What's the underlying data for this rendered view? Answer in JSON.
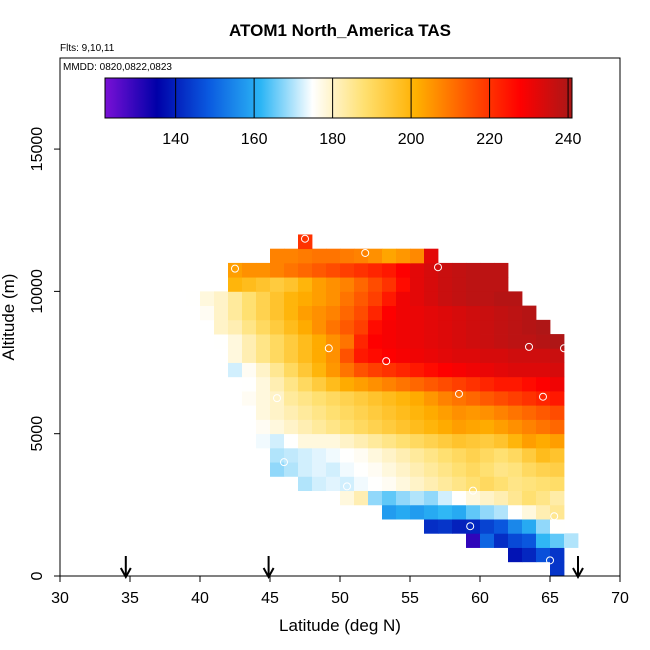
{
  "chart_data": {
    "type": "heatmap",
    "title": "ATOM1 North_America TAS",
    "subtitle_flights": "Flts: 9,10,11",
    "subtitle_dates": "MMDD: 0820,0822,0823",
    "xlabel": "Latitude (deg N)",
    "ylabel": "Altitude (m)",
    "xlim": [
      30,
      70
    ],
    "ylim": [
      0,
      18200
    ],
    "x_ticks": [
      "30",
      "35",
      "40",
      "45",
      "50",
      "55",
      "60",
      "65",
      "70"
    ],
    "y_ticks": [
      "0",
      "5000",
      "10000",
      "15000"
    ],
    "colorbar": {
      "range": [
        122,
        241
      ],
      "ticks": [
        "140",
        "160",
        "180",
        "200",
        "220",
        "240"
      ],
      "stops": [
        "#7a10d6",
        "#0000a8",
        "#0a5ae0",
        "#2bb5f5",
        "#ffffff",
        "#ffe070",
        "#ffb000",
        "#ff5500",
        "#ff0000",
        "#a81818"
      ]
    },
    "cell": {
      "dlat": 1,
      "dalt": 500
    },
    "rows": [
      {
        "alt": 250,
        "lat_start": 65,
        "values": [
          143
        ]
      },
      {
        "alt": 750,
        "lat_start": 62,
        "values": [
          138,
          141,
          147,
          143
        ]
      },
      {
        "alt": 1250,
        "lat_start": 59,
        "values": [
          130,
          150,
          142,
          146,
          148,
          162,
          165,
          170
        ]
      },
      {
        "alt": 1750,
        "lat_start": 56,
        "values": [
          142,
          143,
          140,
          141,
          145,
          148,
          155,
          160,
          168,
          175
        ]
      },
      {
        "alt": 2250,
        "lat_start": 53,
        "values": [
          158,
          160,
          158,
          160,
          162,
          160,
          165,
          168,
          170,
          175,
          178,
          182,
          185
        ]
      },
      {
        "alt": 2750,
        "lat_start": 50,
        "values": [
          178,
          182,
          168,
          165,
          168,
          170,
          168,
          172,
          175,
          178,
          180,
          182,
          185,
          188,
          186,
          183
        ]
      },
      {
        "alt": 3250,
        "lat_start": 47,
        "values": [
          170,
          172,
          173,
          172,
          174,
          175,
          176,
          178,
          180,
          182,
          184,
          186,
          188,
          190,
          188,
          186,
          187,
          188,
          189
        ]
      },
      {
        "alt": 3750,
        "lat_start": 45,
        "values": [
          168,
          170,
          172,
          173,
          172,
          174,
          175,
          176,
          178,
          180,
          182,
          184,
          186,
          188,
          190,
          188,
          186,
          187,
          190,
          192,
          193
        ]
      },
      {
        "alt": 4250,
        "lat_start": 45,
        "values": [
          170,
          171,
          172,
          173,
          174,
          175,
          176,
          178,
          180,
          182,
          184,
          186,
          188,
          190,
          192,
          190,
          188,
          190,
          194,
          198,
          196
        ]
      },
      {
        "alt": 4750,
        "lat_start": 44,
        "values": [
          174,
          172,
          175,
          178,
          178,
          178,
          180,
          182,
          184,
          186,
          188,
          190,
          192,
          194,
          196,
          195,
          194,
          196,
          200,
          204,
          202,
          204
        ]
      },
      {
        "alt": 5250,
        "lat_start": 44,
        "values": [
          176,
          178,
          180,
          182,
          184,
          186,
          188,
          190,
          192,
          194,
          196,
          198,
          200,
          202,
          204,
          203,
          202,
          204,
          206,
          208,
          210,
          212
        ]
      },
      {
        "alt": 5750,
        "lat_start": 44,
        "values": [
          178,
          180,
          182,
          184,
          186,
          188,
          190,
          192,
          194,
          196,
          198,
          200,
          202,
          204,
          206,
          205,
          206,
          208,
          210,
          212,
          214,
          216
        ]
      },
      {
        "alt": 6250,
        "lat_start": 43,
        "values": [
          176,
          178,
          180,
          184,
          186,
          188,
          190,
          192,
          194,
          196,
          198,
          200,
          202,
          205,
          208,
          210,
          212,
          214,
          216,
          218,
          220,
          222,
          224
        ]
      },
      {
        "alt": 6750,
        "lat_start": 43,
        "values": [
          175,
          178,
          182,
          186,
          190,
          194,
          198,
          202,
          204,
          206,
          208,
          210,
          212,
          214,
          216,
          218,
          220,
          222,
          224,
          224,
          226,
          228,
          230
        ]
      },
      {
        "alt": 7250,
        "lat_start": 42,
        "values": [
          172,
          176,
          180,
          185,
          190,
          195,
          200,
          205,
          210,
          215,
          218,
          220,
          222,
          224,
          226,
          228,
          229,
          230,
          231,
          232,
          233,
          233,
          233,
          234
        ]
      },
      {
        "alt": 7750,
        "lat_start": 42,
        "values": [
          178,
          182,
          186,
          190,
          194,
          198,
          202,
          206,
          215,
          224,
          226,
          228,
          229,
          230,
          231,
          232,
          233,
          233,
          234,
          234,
          235,
          235,
          235,
          236
        ]
      },
      {
        "alt": 8250,
        "lat_start": 41,
        "values": [
          175,
          178,
          182,
          186,
          190,
          194,
          198,
          202,
          206,
          210,
          222,
          228,
          229,
          230,
          231,
          232,
          233,
          234,
          235,
          236,
          237,
          238,
          238,
          239,
          240
        ]
      },
      {
        "alt": 8750,
        "lat_start": 41,
        "values": [
          180,
          182,
          186,
          190,
          194,
          198,
          202,
          206,
          210,
          214,
          218,
          226,
          229,
          230,
          231,
          232,
          233,
          234,
          235,
          236,
          237,
          238,
          239,
          240
        ]
      },
      {
        "alt": 9250,
        "lat_start": 40,
        "values": [
          176,
          180,
          184,
          188,
          192,
          196,
          200,
          204,
          206,
          208,
          212,
          216,
          222,
          228,
          230,
          231,
          232,
          233,
          234,
          235,
          236,
          237,
          238,
          239
        ]
      },
      {
        "alt": 9750,
        "lat_start": 39,
        "values": [
          175,
          178,
          180,
          184,
          188,
          192,
          196,
          200,
          202,
          204,
          206,
          210,
          214,
          218,
          224,
          230,
          232,
          234,
          236,
          237,
          238,
          238,
          239,
          239
        ]
      },
      {
        "alt": 10250,
        "lat_start": 42,
        "values": [
          200,
          198,
          196,
          194,
          196,
          200,
          204,
          206,
          208,
          212,
          216,
          220,
          226,
          232,
          234,
          236,
          237,
          238,
          238,
          238
        ]
      },
      {
        "alt": 10750,
        "lat_start": 42,
        "values": [
          204,
          206,
          206,
          208,
          210,
          212,
          214,
          216,
          218,
          220,
          222,
          224,
          228,
          232,
          234,
          236,
          237,
          238,
          238,
          238
        ]
      },
      {
        "alt": 11250,
        "lat_start": 45,
        "values": [
          208,
          208,
          209,
          210,
          210,
          209,
          208,
          206,
          203,
          205,
          207,
          232
        ]
      },
      {
        "alt": 11750,
        "lat_start": 47,
        "values": [
          220
        ]
      }
    ],
    "circle_markers": [
      {
        "lat": 42.5,
        "alt": 10800
      },
      {
        "lat": 39,
        "alt": 9550
      },
      {
        "lat": 47.5,
        "alt": 11850
      },
      {
        "lat": 51.8,
        "alt": 11350
      },
      {
        "lat": 57,
        "alt": 10850
      },
      {
        "lat": 49.2,
        "alt": 8000
      },
      {
        "lat": 53.3,
        "alt": 7550
      },
      {
        "lat": 63.5,
        "alt": 8050
      },
      {
        "lat": 66,
        "alt": 8000
      },
      {
        "lat": 45.5,
        "alt": 6250
      },
      {
        "lat": 58.5,
        "alt": 6400
      },
      {
        "lat": 64.5,
        "alt": 6300
      },
      {
        "lat": 46,
        "alt": 4000
      },
      {
        "lat": 50.5,
        "alt": 3150
      },
      {
        "lat": 59.5,
        "alt": 3000
      },
      {
        "lat": 65.3,
        "alt": 2100
      },
      {
        "lat": 59.3,
        "alt": 1750
      },
      {
        "lat": 65,
        "alt": 550
      }
    ],
    "arrows": [
      {
        "lat": 34.7
      },
      {
        "lat": 44.9
      },
      {
        "lat": 67
      }
    ]
  }
}
